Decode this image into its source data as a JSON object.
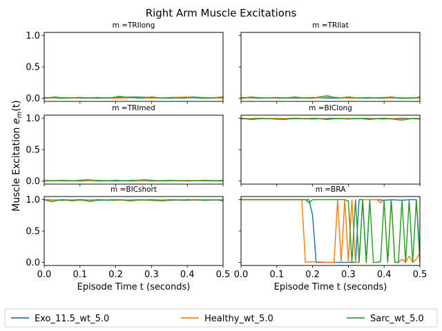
{
  "figure": {
    "title": "Right Arm Muscle Excitations",
    "ylabel_prefix": "Muscle Excitation ",
    "ylabel_math": "e",
    "ylabel_sub": "m",
    "ylabel_suffix": "(t)",
    "xlabel": "Episode Time t (seconds)"
  },
  "legend": [
    {
      "name": "Exo_11.5_wt_5.0",
      "color": "#1f77b4"
    },
    {
      "name": "Healthy_wt_5.0",
      "color": "#ff7f0e"
    },
    {
      "name": "Sarc_wt_5.0",
      "color": "#2ca02c"
    }
  ],
  "chart_data": {
    "type": "line",
    "xlim": [
      0,
      0.5
    ],
    "ylim": [
      -0.05,
      1.05
    ],
    "x_ticks": [
      "0.0",
      "0.1",
      "0.2",
      "0.3",
      "0.4",
      "0.5"
    ],
    "y_ticks": [
      "0.0",
      "0.5",
      "1.0"
    ],
    "panels": [
      {
        "title": "m =TRIlong",
        "series": [
          {
            "name": "Exo_11.5_wt_5.0",
            "x": [
              0,
              0.05,
              0.1,
              0.15,
              0.2,
              0.25,
              0.3,
              0.35,
              0.4,
              0.45,
              0.5
            ],
            "y": [
              0.01,
              0.0,
              0.01,
              0.0,
              0.01,
              0.02,
              0.01,
              0.0,
              0.01,
              0.0,
              0.01
            ]
          },
          {
            "name": "Healthy_wt_5.0",
            "x": [
              0,
              0.05,
              0.1,
              0.15,
              0.2,
              0.25,
              0.3,
              0.35,
              0.4,
              0.45,
              0.5
            ],
            "y": [
              0.0,
              0.01,
              0.0,
              0.01,
              0.0,
              0.01,
              0.0,
              0.01,
              0.02,
              0.01,
              0.0
            ]
          },
          {
            "name": "Sarc_wt_5.0",
            "x": [
              0,
              0.03,
              0.06,
              0.09,
              0.12,
              0.15,
              0.18,
              0.21,
              0.24,
              0.27,
              0.3,
              0.33,
              0.36,
              0.39,
              0.42,
              0.45,
              0.48,
              0.5
            ],
            "y": [
              0.0,
              0.02,
              0.0,
              0.01,
              0.0,
              0.01,
              0.0,
              0.03,
              0.01,
              0.0,
              0.02,
              0.0,
              0.01,
              0.0,
              0.02,
              0.0,
              0.01,
              0.02
            ]
          }
        ]
      },
      {
        "title": "m =TRIlat",
        "series": [
          {
            "name": "Exo_11.5_wt_5.0",
            "x": [
              0,
              0.05,
              0.1,
              0.15,
              0.2,
              0.25,
              0.3,
              0.35,
              0.4,
              0.45,
              0.5
            ],
            "y": [
              0.01,
              0.0,
              0.01,
              0.0,
              0.01,
              0.0,
              0.01,
              0.0,
              0.01,
              0.0,
              0.01
            ]
          },
          {
            "name": "Healthy_wt_5.0",
            "x": [
              0,
              0.05,
              0.1,
              0.15,
              0.2,
              0.25,
              0.3,
              0.35,
              0.4,
              0.45,
              0.5
            ],
            "y": [
              0.0,
              0.01,
              0.0,
              0.01,
              0.0,
              0.02,
              0.0,
              0.01,
              0.0,
              0.01,
              0.0
            ]
          },
          {
            "name": "Sarc_wt_5.0",
            "x": [
              0,
              0.03,
              0.06,
              0.09,
              0.12,
              0.15,
              0.18,
              0.21,
              0.24,
              0.27,
              0.3,
              0.33,
              0.36,
              0.39,
              0.42,
              0.45,
              0.48,
              0.5
            ],
            "y": [
              0.0,
              0.02,
              0.0,
              0.01,
              0.0,
              0.02,
              0.0,
              0.01,
              0.04,
              0.0,
              0.02,
              0.0,
              0.01,
              0.0,
              0.02,
              0.0,
              0.0,
              0.02
            ]
          }
        ]
      },
      {
        "title": "m =TRImed",
        "series": [
          {
            "name": "Exo_11.5_wt_5.0",
            "x": [
              0,
              0.05,
              0.1,
              0.15,
              0.2,
              0.25,
              0.3,
              0.35,
              0.4,
              0.45,
              0.5
            ],
            "y": [
              0.0,
              0.01,
              0.0,
              0.01,
              0.0,
              0.01,
              0.0,
              0.01,
              0.0,
              0.01,
              0.0
            ]
          },
          {
            "name": "Healthy_wt_5.0",
            "x": [
              0,
              0.05,
              0.1,
              0.15,
              0.2,
              0.25,
              0.3,
              0.35,
              0.4,
              0.45,
              0.5
            ],
            "y": [
              0.01,
              0.0,
              0.01,
              0.0,
              0.01,
              0.0,
              0.01,
              0.0,
              0.01,
              0.0,
              0.01
            ]
          },
          {
            "name": "Sarc_wt_5.0",
            "x": [
              0,
              0.04,
              0.08,
              0.12,
              0.16,
              0.2,
              0.24,
              0.28,
              0.32,
              0.36,
              0.4,
              0.44,
              0.48,
              0.5
            ],
            "y": [
              0.0,
              0.01,
              0.0,
              0.02,
              0.0,
              0.01,
              0.0,
              0.02,
              0.0,
              0.01,
              0.0,
              0.01,
              0.0,
              0.01
            ]
          }
        ]
      },
      {
        "title": "m =BIClong",
        "series": [
          {
            "name": "Exo_11.5_wt_5.0",
            "x": [
              0,
              0.05,
              0.1,
              0.15,
              0.2,
              0.25,
              0.3,
              0.35,
              0.4,
              0.45,
              0.5
            ],
            "y": [
              0.99,
              1.0,
              0.99,
              1.0,
              0.99,
              1.0,
              0.99,
              1.0,
              0.99,
              1.0,
              0.99
            ]
          },
          {
            "name": "Healthy_wt_5.0",
            "x": [
              0,
              0.05,
              0.1,
              0.15,
              0.2,
              0.25,
              0.3,
              0.35,
              0.4,
              0.45,
              0.5
            ],
            "y": [
              1.0,
              0.99,
              1.0,
              0.99,
              1.0,
              0.99,
              1.0,
              0.99,
              1.0,
              0.99,
              1.0
            ]
          },
          {
            "name": "Sarc_wt_5.0",
            "x": [
              0,
              0.03,
              0.06,
              0.09,
              0.12,
              0.15,
              0.18,
              0.21,
              0.24,
              0.27,
              0.3,
              0.33,
              0.36,
              0.39,
              0.42,
              0.45,
              0.48,
              0.5
            ],
            "y": [
              1.0,
              0.98,
              1.0,
              0.99,
              0.98,
              1.0,
              0.99,
              1.0,
              0.98,
              1.0,
              0.99,
              1.0,
              0.98,
              1.0,
              0.99,
              0.97,
              1.0,
              0.99
            ]
          }
        ]
      },
      {
        "title": "m =BICshort",
        "series": [
          {
            "name": "Exo_11.5_wt_5.0",
            "x": [
              0,
              0.05,
              0.1,
              0.15,
              0.2,
              0.25,
              0.3,
              0.35,
              0.4,
              0.45,
              0.5
            ],
            "y": [
              1.0,
              0.99,
              1.0,
              0.99,
              1.0,
              0.99,
              1.0,
              0.99,
              1.0,
              0.99,
              1.0
            ]
          },
          {
            "name": "Healthy_wt_5.0",
            "x": [
              0,
              0.05,
              0.1,
              0.15,
              0.2,
              0.25,
              0.3,
              0.35,
              0.4,
              0.45,
              0.5
            ],
            "y": [
              0.99,
              1.0,
              0.99,
              1.0,
              0.99,
              1.0,
              0.99,
              1.0,
              0.99,
              1.0,
              0.99
            ]
          },
          {
            "name": "Sarc_wt_5.0",
            "x": [
              0,
              0.02,
              0.05,
              0.08,
              0.1,
              0.13,
              0.15,
              0.18,
              0.21,
              0.24,
              0.27,
              0.3,
              0.33,
              0.36,
              0.39,
              0.42,
              0.45,
              0.48,
              0.5
            ],
            "y": [
              1.0,
              0.97,
              1.0,
              0.98,
              1.0,
              0.97,
              1.0,
              0.99,
              1.0,
              0.98,
              1.0,
              0.99,
              0.98,
              1.0,
              0.99,
              1.0,
              0.99,
              1.0,
              0.98
            ]
          }
        ]
      },
      {
        "title": "m =BRA",
        "series": [
          {
            "name": "Exo_11.5_wt_5.0",
            "x": [
              0,
              0.1,
              0.19,
              0.2,
              0.21,
              0.22,
              0.3,
              0.32,
              0.33,
              0.34,
              0.35,
              0.36,
              0.38,
              0.4,
              0.42,
              0.45,
              0.47,
              0.49,
              0.5
            ],
            "y": [
              1.0,
              1.0,
              1.0,
              0.75,
              0.0,
              0.0,
              0.0,
              0.0,
              1.0,
              1.0,
              0.0,
              1.0,
              1.0,
              0.99,
              1.0,
              0.99,
              1.0,
              1.0,
              0.15
            ]
          },
          {
            "name": "Healthy_wt_5.0",
            "x": [
              0,
              0.1,
              0.17,
              0.18,
              0.2,
              0.25,
              0.26,
              0.27,
              0.28,
              0.29,
              0.3,
              0.31,
              0.32,
              0.33,
              0.34,
              0.35,
              0.36,
              0.38,
              0.39,
              0.4,
              0.41,
              0.42,
              0.43,
              0.44,
              0.45,
              0.46,
              0.47,
              0.48,
              0.49,
              0.5
            ],
            "y": [
              1.0,
              1.0,
              1.0,
              0.0,
              0.01,
              0.0,
              0.0,
              1.0,
              0.0,
              1.0,
              0.0,
              1.0,
              0.0,
              0.0,
              1.0,
              1.0,
              1.0,
              1.0,
              0.95,
              1.0,
              0.0,
              1.0,
              0.0,
              0.0,
              0.05,
              0.0,
              0.1,
              0.0,
              0.05,
              0.15
            ]
          },
          {
            "name": "Sarc_wt_5.0",
            "x": [
              0,
              0.1,
              0.18,
              0.19,
              0.2,
              0.25,
              0.29,
              0.3,
              0.31,
              0.32,
              0.33,
              0.34,
              0.35,
              0.36,
              0.37,
              0.38,
              0.39,
              0.4,
              0.41,
              0.42,
              0.43,
              0.44,
              0.45,
              0.46,
              0.47,
              0.48,
              0.49,
              0.5
            ],
            "y": [
              1.0,
              1.0,
              1.0,
              0.95,
              1.0,
              1.0,
              1.0,
              0.98,
              0.0,
              1.0,
              0.0,
              1.0,
              0.0,
              1.0,
              0.0,
              0.0,
              0.01,
              1.0,
              0.0,
              1.0,
              0.0,
              0.0,
              1.0,
              0.0,
              1.0,
              0.0,
              1.0,
              0.0
            ]
          }
        ]
      }
    ]
  }
}
